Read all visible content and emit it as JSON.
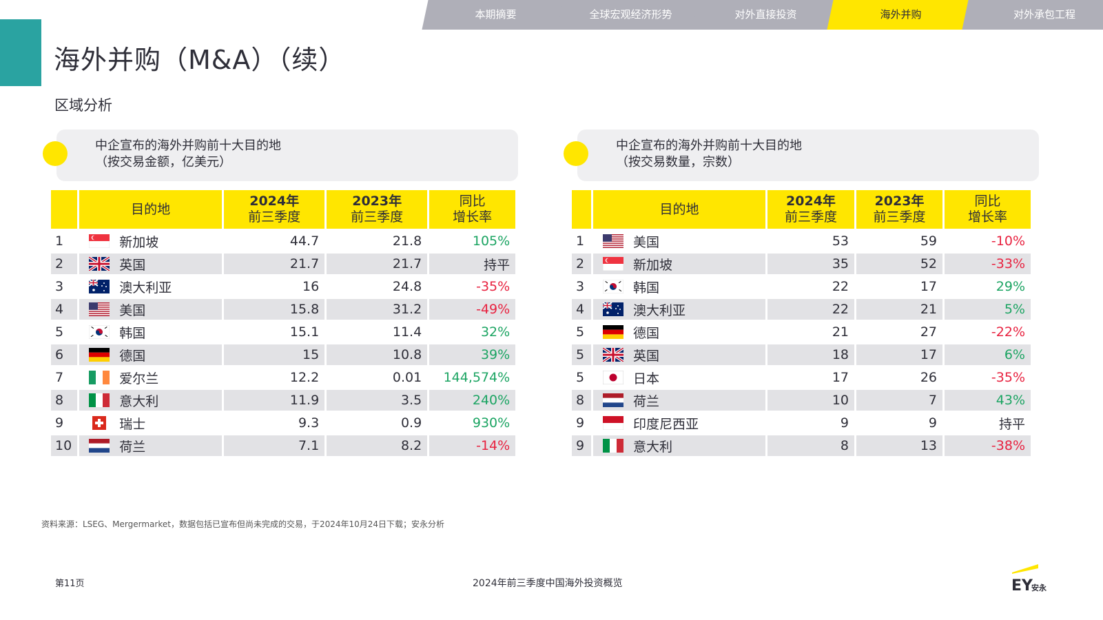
{
  "nav": {
    "tabs": [
      "本期摘要",
      "全球宏观经济形势",
      "对外直接投资",
      "海外并购",
      "对外承包工程"
    ],
    "active_index": 3
  },
  "header": {
    "title": "海外并购（M&A）（续）",
    "subtitle": "区域分析"
  },
  "tables": {
    "left": {
      "caption_line1": "中企宣布的海外并购前十大目的地",
      "caption_line2": "（按交易金额，亿美元）",
      "headers": {
        "destination": "目的地",
        "y2024_year": "2024年",
        "y2024_period": "前三季度",
        "y2023_year": "2023年",
        "y2023_period": "前三季度",
        "growth_line1": "同比",
        "growth_line2": "增长率"
      },
      "rows": [
        {
          "rank": "1",
          "flag": "singapore-flag",
          "name": "新加坡",
          "v2024": "44.7",
          "v2023": "21.8",
          "growth": "105%",
          "trend": "up"
        },
        {
          "rank": "2",
          "flag": "uk-flag",
          "name": "英国",
          "v2024": "21.7",
          "v2023": "21.7",
          "growth": "持平",
          "trend": "flat"
        },
        {
          "rank": "3",
          "flag": "australia-flag",
          "name": "澳大利亚",
          "v2024": "16",
          "v2023": "24.8",
          "growth": "-35%",
          "trend": "down"
        },
        {
          "rank": "4",
          "flag": "usa-flag",
          "name": "美国",
          "v2024": "15.8",
          "v2023": "31.2",
          "growth": "-49%",
          "trend": "down"
        },
        {
          "rank": "5",
          "flag": "korea-flag",
          "name": "韩国",
          "v2024": "15.1",
          "v2023": "11.4",
          "growth": "32%",
          "trend": "up"
        },
        {
          "rank": "6",
          "flag": "germany-flag",
          "name": "德国",
          "v2024": "15",
          "v2023": "10.8",
          "growth": "39%",
          "trend": "up"
        },
        {
          "rank": "7",
          "flag": "ireland-flag",
          "name": "爱尔兰",
          "v2024": "12.2",
          "v2023": "0.01",
          "growth": "144,574%",
          "trend": "up"
        },
        {
          "rank": "8",
          "flag": "italy-flag",
          "name": "意大利",
          "v2024": "11.9",
          "v2023": "3.5",
          "growth": "240%",
          "trend": "up"
        },
        {
          "rank": "9",
          "flag": "switzerland-flag",
          "name": "瑞士",
          "v2024": "9.3",
          "v2023": "0.9",
          "growth": "930%",
          "trend": "up"
        },
        {
          "rank": "10",
          "flag": "netherlands-flag",
          "name": "荷兰",
          "v2024": "7.1",
          "v2023": "8.2",
          "growth": "-14%",
          "trend": "down"
        }
      ]
    },
    "right": {
      "caption_line1": "中企宣布的海外并购前十大目的地",
      "caption_line2": "（按交易数量，宗数）",
      "headers": {
        "destination": "目的地",
        "y2024_year": "2024年",
        "y2024_period": "前三季度",
        "y2023_year": "2023年",
        "y2023_period": "前三季度",
        "growth_line1": "同比",
        "growth_line2": "增长率"
      },
      "rows": [
        {
          "rank": "1",
          "flag": "usa-flag",
          "name": "美国",
          "v2024": "53",
          "v2023": "59",
          "growth": "-10%",
          "trend": "down"
        },
        {
          "rank": "2",
          "flag": "singapore-flag",
          "name": "新加坡",
          "v2024": "35",
          "v2023": "52",
          "growth": "-33%",
          "trend": "down"
        },
        {
          "rank": "3",
          "flag": "korea-flag",
          "name": "韩国",
          "v2024": "22",
          "v2023": "17",
          "growth": "29%",
          "trend": "up"
        },
        {
          "rank": "4",
          "flag": "australia-flag",
          "name": "澳大利亚",
          "v2024": "22",
          "v2023": "21",
          "growth": "5%",
          "trend": "up"
        },
        {
          "rank": "5",
          "flag": "germany-flag",
          "name": "德国",
          "v2024": "21",
          "v2023": "27",
          "growth": "-22%",
          "trend": "down"
        },
        {
          "rank": "5",
          "flag": "uk-flag",
          "name": "英国",
          "v2024": "18",
          "v2023": "17",
          "growth": "6%",
          "trend": "up"
        },
        {
          "rank": "5",
          "flag": "japan-flag",
          "name": "日本",
          "v2024": "17",
          "v2023": "26",
          "growth": "-35%",
          "trend": "down"
        },
        {
          "rank": "8",
          "flag": "netherlands-flag",
          "name": "荷兰",
          "v2024": "10",
          "v2023": "7",
          "growth": "43%",
          "trend": "up"
        },
        {
          "rank": "9",
          "flag": "indonesia-flag",
          "name": "印度尼西亚",
          "v2024": "9",
          "v2023": "9",
          "growth": "持平",
          "trend": "flat"
        },
        {
          "rank": "9",
          "flag": "italy-flag",
          "name": "意大利",
          "v2024": "8",
          "v2023": "13",
          "growth": "-38%",
          "trend": "down"
        }
      ]
    }
  },
  "footer": {
    "source": "资料来源：LSEG、Mergermarket，数据包括已宣布但尚未完成的交易，于2024年10月24日下载；安永分析",
    "page": "第11页",
    "report_title": "2024年前三季度中国海外投资概览",
    "logo_text": "EY安永"
  },
  "colors": {
    "accent_yellow": "#ffe600",
    "teal": "#2aa3a1",
    "tab_gray": "#afafb8",
    "positive": "#1ba462",
    "negative": "#e8213f"
  }
}
